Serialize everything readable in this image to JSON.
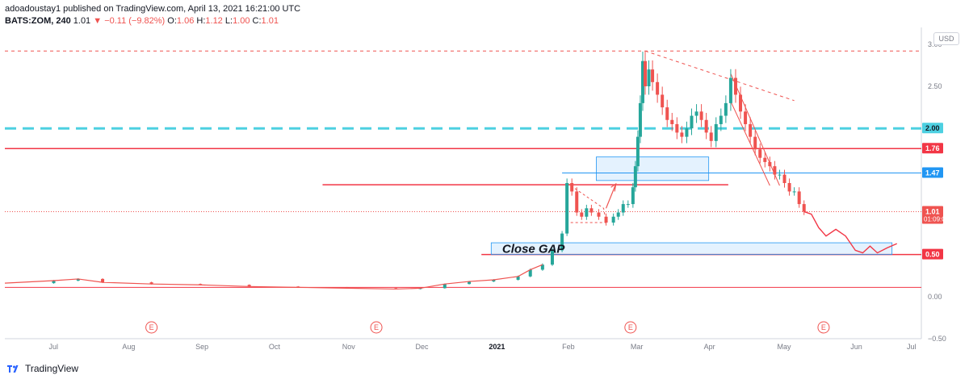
{
  "header": {
    "publisher_line": "adoadoustay1 published on TradingView.com, April 13, 2021 16:21:00 UTC",
    "symbol": "BATS:ZOM, 240",
    "last": "1.01",
    "change": "▼ −0.11 (−9.82%)",
    "ohlc": {
      "o_label": "O:",
      "o": "1.06",
      "h_label": "H:",
      "h": "1.12",
      "l_label": "L:",
      "l": "1.00",
      "c_label": "C:",
      "c": "1.01"
    }
  },
  "currency_button": "USD",
  "brand": {
    "name": "TradingView",
    "logo_icon": "tradingview-logo-icon"
  },
  "colors": {
    "up": "#26a69a",
    "down": "#ef5350",
    "red_line": "#f23645",
    "cyan": "#4dd0e1",
    "blue": "#2196f3",
    "gray_text": "#787b86"
  },
  "chart_data": {
    "type": "candlestick",
    "title": "",
    "xlabel": "",
    "ylabel": "",
    "ylim": [
      -0.5,
      3.2
    ],
    "y_ticks": [
      "3.00",
      "2.50",
      "2.00",
      "1.50",
      "1.00",
      "0.50",
      "0.00",
      "−0.50"
    ],
    "x_ticks": [
      "Jul",
      "Aug",
      "Sep",
      "Oct",
      "Nov",
      "Dec",
      "2021",
      "Feb",
      "Mar",
      "Apr",
      "May",
      "Jun",
      "Jul"
    ],
    "earnings_markers": [
      "E",
      "E",
      "E",
      "E"
    ],
    "price_labels": [
      {
        "value": 2.0,
        "text": "2.00",
        "style": "cyan"
      },
      {
        "value": 1.76,
        "text": "1.76",
        "style": "red"
      },
      {
        "value": 1.47,
        "text": "1.47",
        "style": "blue"
      },
      {
        "value": 1.01,
        "text": "1.01",
        "sub": "01:09:01",
        "style": "last"
      },
      {
        "value": 0.5,
        "text": "0.50",
        "style": "red"
      }
    ],
    "price_series": [
      [
        0.0,
        0.16
      ],
      [
        2.0,
        0.19
      ],
      [
        3.0,
        0.21
      ],
      [
        4.0,
        0.17
      ],
      [
        6.0,
        0.15
      ],
      [
        8.0,
        0.14
      ],
      [
        10.0,
        0.12
      ],
      [
        12.0,
        0.11
      ],
      [
        14.0,
        0.1
      ],
      [
        16.0,
        0.09
      ],
      [
        17.0,
        0.1
      ],
      [
        18.0,
        0.15
      ],
      [
        19.0,
        0.18
      ],
      [
        20.0,
        0.2
      ],
      [
        21.0,
        0.24
      ],
      [
        21.5,
        0.32
      ],
      [
        22.0,
        0.38
      ],
      [
        22.4,
        0.55
      ],
      [
        22.8,
        0.75
      ],
      [
        23.0,
        1.35
      ],
      [
        23.2,
        1.25
      ],
      [
        23.4,
        1.0
      ],
      [
        23.6,
        0.95
      ],
      [
        23.8,
        1.05
      ],
      [
        24.0,
        1.0
      ],
      [
        24.3,
        0.95
      ],
      [
        24.6,
        0.88
      ],
      [
        24.9,
        0.95
      ],
      [
        25.1,
        1.0
      ],
      [
        25.3,
        1.1
      ],
      [
        25.5,
        1.1
      ],
      [
        25.7,
        1.3
      ],
      [
        25.8,
        1.55
      ],
      [
        25.9,
        1.9
      ],
      [
        26.0,
        2.3
      ],
      [
        26.1,
        2.8
      ],
      [
        26.2,
        2.5
      ],
      [
        26.35,
        2.7
      ],
      [
        26.5,
        2.55
      ],
      [
        26.7,
        2.4
      ],
      [
        26.9,
        2.25
      ],
      [
        27.1,
        2.1
      ],
      [
        27.3,
        2.05
      ],
      [
        27.5,
        1.95
      ],
      [
        27.7,
        1.9
      ],
      [
        27.9,
        2.0
      ],
      [
        28.1,
        2.15
      ],
      [
        28.3,
        2.2
      ],
      [
        28.5,
        2.1
      ],
      [
        28.7,
        1.95
      ],
      [
        28.9,
        1.85
      ],
      [
        29.1,
        2.05
      ],
      [
        29.3,
        2.15
      ],
      [
        29.5,
        2.3
      ],
      [
        29.7,
        2.6
      ],
      [
        29.9,
        2.4
      ],
      [
        30.1,
        2.2
      ],
      [
        30.3,
        2.05
      ],
      [
        30.5,
        1.9
      ],
      [
        30.7,
        1.75
      ],
      [
        30.9,
        1.65
      ],
      [
        31.1,
        1.6
      ],
      [
        31.3,
        1.55
      ],
      [
        31.5,
        1.45
      ],
      [
        31.7,
        1.45
      ],
      [
        31.9,
        1.35
      ],
      [
        32.1,
        1.25
      ],
      [
        32.3,
        1.25
      ],
      [
        32.5,
        1.1
      ],
      [
        32.7,
        1.01
      ]
    ],
    "projection": [
      [
        32.7,
        1.01
      ],
      [
        33.0,
        0.98
      ],
      [
        33.3,
        0.82
      ],
      [
        33.6,
        0.72
      ],
      [
        34.0,
        0.8
      ],
      [
        34.4,
        0.72
      ],
      [
        34.8,
        0.55
      ],
      [
        35.1,
        0.52
      ],
      [
        35.4,
        0.6
      ],
      [
        35.7,
        0.52
      ],
      [
        36.1,
        0.58
      ],
      [
        36.5,
        0.63
      ]
    ],
    "annotation": "Close GAP"
  }
}
